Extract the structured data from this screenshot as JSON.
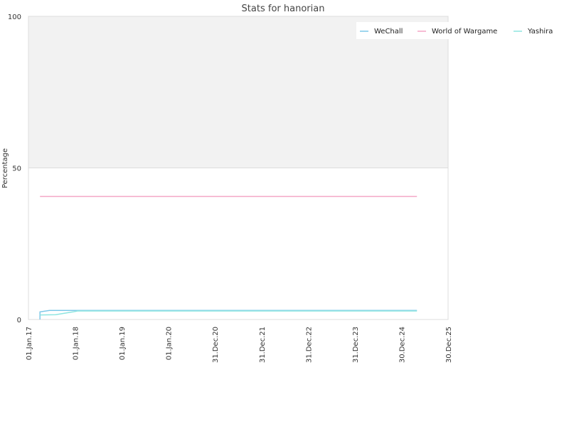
{
  "chart_data": {
    "type": "line",
    "title": "Stats for hanorian",
    "xlabel": "",
    "ylabel": "Percentage",
    "ylim": [
      0,
      100
    ],
    "xlim": [
      "2017-01-01",
      "2025-12-30"
    ],
    "yticks": [
      0,
      50,
      100
    ],
    "xticks": [
      {
        "date": "2017-01-01",
        "label": "01.Jan.17"
      },
      {
        "date": "2018-01-01",
        "label": "01.Jan.18"
      },
      {
        "date": "2019-01-01",
        "label": "01.Jan.19"
      },
      {
        "date": "2020-01-01",
        "label": "01.Jan.20"
      },
      {
        "date": "2020-12-31",
        "label": "31.Dec.20"
      },
      {
        "date": "2021-12-31",
        "label": "31.Dec.21"
      },
      {
        "date": "2022-12-31",
        "label": "31.Dec.22"
      },
      {
        "date": "2023-12-31",
        "label": "31.Dec.23"
      },
      {
        "date": "2024-12-30",
        "label": "30.Dec.24"
      },
      {
        "date": "2025-12-30",
        "label": "30.Dec.25"
      }
    ],
    "shaded_band": [
      50,
      100
    ],
    "legend_position": "top-right",
    "series": [
      {
        "name": "WeChall",
        "color": "#7ec8e8",
        "points": [
          {
            "x": "2017-04-01",
            "y": 0.0
          },
          {
            "x": "2017-04-01",
            "y": 2.5
          },
          {
            "x": "2017-06-15",
            "y": 3.0
          },
          {
            "x": "2025-04-30",
            "y": 3.0
          }
        ]
      },
      {
        "name": "World of Wargame",
        "color": "#f4a6c6",
        "points": [
          {
            "x": "2017-04-01",
            "y": 40.6
          },
          {
            "x": "2025-04-30",
            "y": 40.6
          }
        ]
      },
      {
        "name": "Yashira",
        "color": "#8ee5e0",
        "points": [
          {
            "x": "2017-04-01",
            "y": 1.5
          },
          {
            "x": "2017-08-01",
            "y": 1.6
          },
          {
            "x": "2017-12-15",
            "y": 2.5
          },
          {
            "x": "2018-01-20",
            "y": 2.8
          },
          {
            "x": "2025-04-30",
            "y": 2.8
          }
        ]
      }
    ]
  }
}
